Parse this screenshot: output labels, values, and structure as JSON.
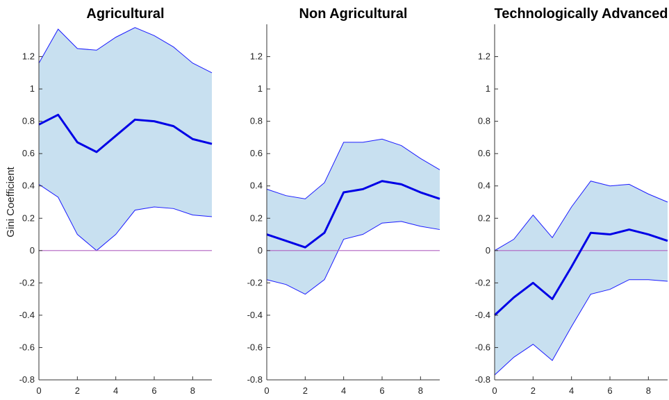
{
  "colors": {
    "band_fill": "#c8e0f0",
    "band_edge": "#1a1aff",
    "response_line": "#0000e6",
    "zero_line": "#b060c0",
    "axis": "#333333"
  },
  "chart_data": [
    {
      "type": "line",
      "title": "Agricultural",
      "ylabel": "Gini Coefficient",
      "xlabel": "",
      "xlim": [
        0,
        9
      ],
      "ylim": [
        -0.8,
        1.4
      ],
      "xticks": [
        0,
        2,
        4,
        6,
        8
      ],
      "yticks": [
        -0.8,
        -0.6,
        -0.4,
        -0.2,
        0,
        0.2,
        0.4,
        0.6,
        0.8,
        1,
        1.2
      ],
      "x": [
        0,
        1,
        2,
        3,
        4,
        5,
        6,
        7,
        8,
        9
      ],
      "series": [
        {
          "role": "response",
          "values": [
            0.78,
            0.84,
            0.67,
            0.61,
            0.71,
            0.81,
            0.8,
            0.77,
            0.69,
            0.66
          ]
        },
        {
          "role": "upper-band",
          "values": [
            1.16,
            1.37,
            1.25,
            1.24,
            1.32,
            1.38,
            1.33,
            1.26,
            1.16,
            1.1
          ]
        },
        {
          "role": "lower-band",
          "values": [
            0.41,
            0.33,
            0.1,
            0.0,
            0.1,
            0.25,
            0.27,
            0.26,
            0.22,
            0.21
          ]
        }
      ],
      "zero_line": 0
    },
    {
      "type": "line",
      "title": "Non Agricultural",
      "ylabel": "",
      "xlabel": "",
      "xlim": [
        0,
        9
      ],
      "ylim": [
        -0.8,
        1.4
      ],
      "xticks": [
        0,
        2,
        4,
        6,
        8
      ],
      "yticks": [
        -0.8,
        -0.6,
        -0.4,
        -0.2,
        0,
        0.2,
        0.4,
        0.6,
        0.8,
        1,
        1.2
      ],
      "x": [
        0,
        1,
        2,
        3,
        4,
        5,
        6,
        7,
        8,
        9
      ],
      "series": [
        {
          "role": "response",
          "values": [
            0.1,
            0.06,
            0.02,
            0.11,
            0.36,
            0.38,
            0.43,
            0.41,
            0.36,
            0.32
          ]
        },
        {
          "role": "upper-band",
          "values": [
            0.38,
            0.34,
            0.32,
            0.42,
            0.67,
            0.67,
            0.69,
            0.65,
            0.57,
            0.5
          ]
        },
        {
          "role": "lower-band",
          "values": [
            -0.18,
            -0.21,
            -0.27,
            -0.18,
            0.07,
            0.1,
            0.17,
            0.18,
            0.15,
            0.13
          ]
        }
      ],
      "zero_line": 0
    },
    {
      "type": "line",
      "title": "Technologically Advanced",
      "ylabel": "",
      "xlabel": "",
      "xlim": [
        0,
        9
      ],
      "ylim": [
        -0.8,
        1.4
      ],
      "xticks": [
        0,
        2,
        4,
        6,
        8
      ],
      "yticks": [
        -0.8,
        -0.6,
        -0.4,
        -0.2,
        0,
        0.2,
        0.4,
        0.6,
        0.8,
        1,
        1.2
      ],
      "x": [
        0,
        1,
        2,
        3,
        4,
        5,
        6,
        7,
        8,
        9
      ],
      "series": [
        {
          "role": "response",
          "values": [
            -0.4,
            -0.29,
            -0.2,
            -0.3,
            -0.1,
            0.11,
            0.1,
            0.13,
            0.1,
            0.06
          ]
        },
        {
          "role": "upper-band",
          "values": [
            0.0,
            0.07,
            0.22,
            0.08,
            0.27,
            0.43,
            0.4,
            0.41,
            0.35,
            0.3
          ]
        },
        {
          "role": "lower-band",
          "values": [
            -0.77,
            -0.66,
            -0.58,
            -0.68,
            -0.47,
            -0.27,
            -0.24,
            -0.18,
            -0.18,
            -0.19
          ]
        }
      ],
      "zero_line": 0
    }
  ]
}
